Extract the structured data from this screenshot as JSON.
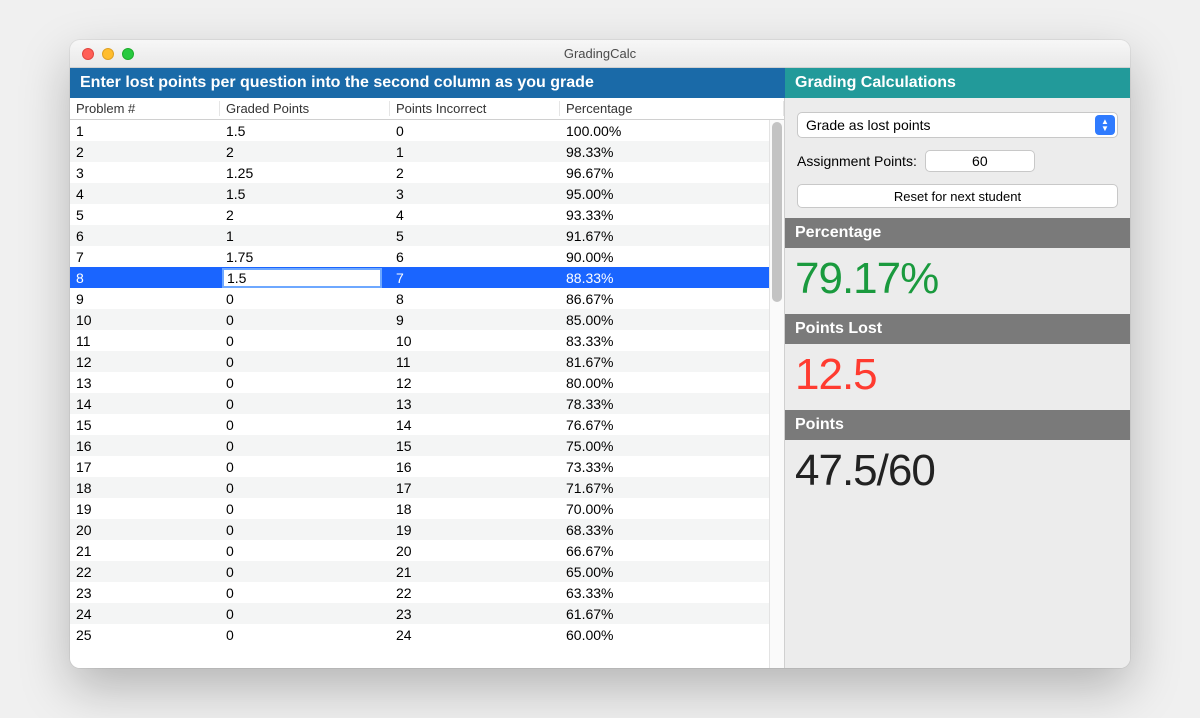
{
  "window": {
    "title": "GradingCalc"
  },
  "left": {
    "banner": "Enter lost points per question into the second column as you grade",
    "columns": [
      "Problem #",
      "Graded Points",
      "Points Incorrect",
      "Percentage"
    ],
    "selected_index": 7,
    "editing_value": "1.5",
    "rows": [
      {
        "problem": "1",
        "graded": "1.5",
        "incorrect": "0",
        "pct": "100.00%"
      },
      {
        "problem": "2",
        "graded": "2",
        "incorrect": "1",
        "pct": "98.33%"
      },
      {
        "problem": "3",
        "graded": "1.25",
        "incorrect": "2",
        "pct": "96.67%"
      },
      {
        "problem": "4",
        "graded": "1.5",
        "incorrect": "3",
        "pct": "95.00%"
      },
      {
        "problem": "5",
        "graded": "2",
        "incorrect": "4",
        "pct": "93.33%"
      },
      {
        "problem": "6",
        "graded": "1",
        "incorrect": "5",
        "pct": "91.67%"
      },
      {
        "problem": "7",
        "graded": "1.75",
        "incorrect": "6",
        "pct": "90.00%"
      },
      {
        "problem": "8",
        "graded": "1.5",
        "incorrect": "7",
        "pct": "88.33%"
      },
      {
        "problem": "9",
        "graded": "0",
        "incorrect": "8",
        "pct": "86.67%"
      },
      {
        "problem": "10",
        "graded": "0",
        "incorrect": "9",
        "pct": "85.00%"
      },
      {
        "problem": "11",
        "graded": "0",
        "incorrect": "10",
        "pct": "83.33%"
      },
      {
        "problem": "12",
        "graded": "0",
        "incorrect": "11",
        "pct": "81.67%"
      },
      {
        "problem": "13",
        "graded": "0",
        "incorrect": "12",
        "pct": "80.00%"
      },
      {
        "problem": "14",
        "graded": "0",
        "incorrect": "13",
        "pct": "78.33%"
      },
      {
        "problem": "15",
        "graded": "0",
        "incorrect": "14",
        "pct": "76.67%"
      },
      {
        "problem": "16",
        "graded": "0",
        "incorrect": "15",
        "pct": "75.00%"
      },
      {
        "problem": "17",
        "graded": "0",
        "incorrect": "16",
        "pct": "73.33%"
      },
      {
        "problem": "18",
        "graded": "0",
        "incorrect": "17",
        "pct": "71.67%"
      },
      {
        "problem": "19",
        "graded": "0",
        "incorrect": "18",
        "pct": "70.00%"
      },
      {
        "problem": "20",
        "graded": "0",
        "incorrect": "19",
        "pct": "68.33%"
      },
      {
        "problem": "21",
        "graded": "0",
        "incorrect": "20",
        "pct": "66.67%"
      },
      {
        "problem": "22",
        "graded": "0",
        "incorrect": "21",
        "pct": "65.00%"
      },
      {
        "problem": "23",
        "graded": "0",
        "incorrect": "22",
        "pct": "63.33%"
      },
      {
        "problem": "24",
        "graded": "0",
        "incorrect": "23",
        "pct": "61.67%"
      },
      {
        "problem": "25",
        "graded": "0",
        "incorrect": "24",
        "pct": "60.00%"
      }
    ]
  },
  "right": {
    "banner": "Grading  Calculations",
    "mode_label": "Grade as lost points",
    "assignment_points_label": "Assignment Points:",
    "assignment_points_value": "60",
    "reset_label": "Reset for next student",
    "percentage_header": "Percentage",
    "percentage_value": "79.17%",
    "points_lost_header": "Points Lost",
    "points_lost_value": "12.5",
    "points_header": "Points",
    "points_value": "47.5/60"
  },
  "styling": {
    "banner_blue": "#1a6aa8",
    "banner_teal": "#229a9a",
    "selection_blue": "#1a65ff",
    "section_header_gray": "#7a7a7a",
    "value_green": "#1a9a3e",
    "value_red": "#ff3b30",
    "window_bg": "#ececec",
    "row_alt_bg": "#f4f5f5",
    "big_value_fontsize": 44,
    "banner_fontsize": 16
  }
}
